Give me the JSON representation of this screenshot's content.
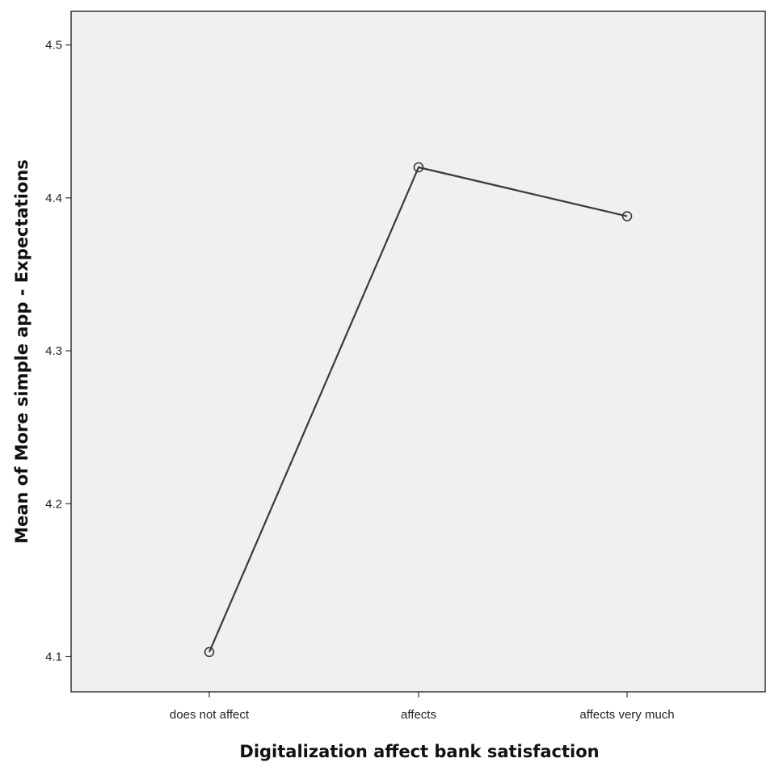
{
  "chart_data": {
    "type": "line",
    "title": "",
    "xlabel": "Digitalization affect bank satisfaction",
    "ylabel": "Mean of More simple app - Expectations",
    "categories": [
      "does not affect",
      "affects",
      "affects very much"
    ],
    "series": [
      {
        "values": [
          4.103,
          4.42,
          4.388
        ]
      }
    ],
    "ylim": [
      4.077,
      4.522
    ],
    "yticks": [
      "4.1",
      "4.2",
      "4.3",
      "4.4",
      "4.5"
    ],
    "grid": false,
    "legend": "none",
    "colors": {
      "plot_background": "#f0f0f0",
      "line": "#3a3a3a",
      "marker": "#3a3a3a",
      "frame": "#333333"
    }
  }
}
